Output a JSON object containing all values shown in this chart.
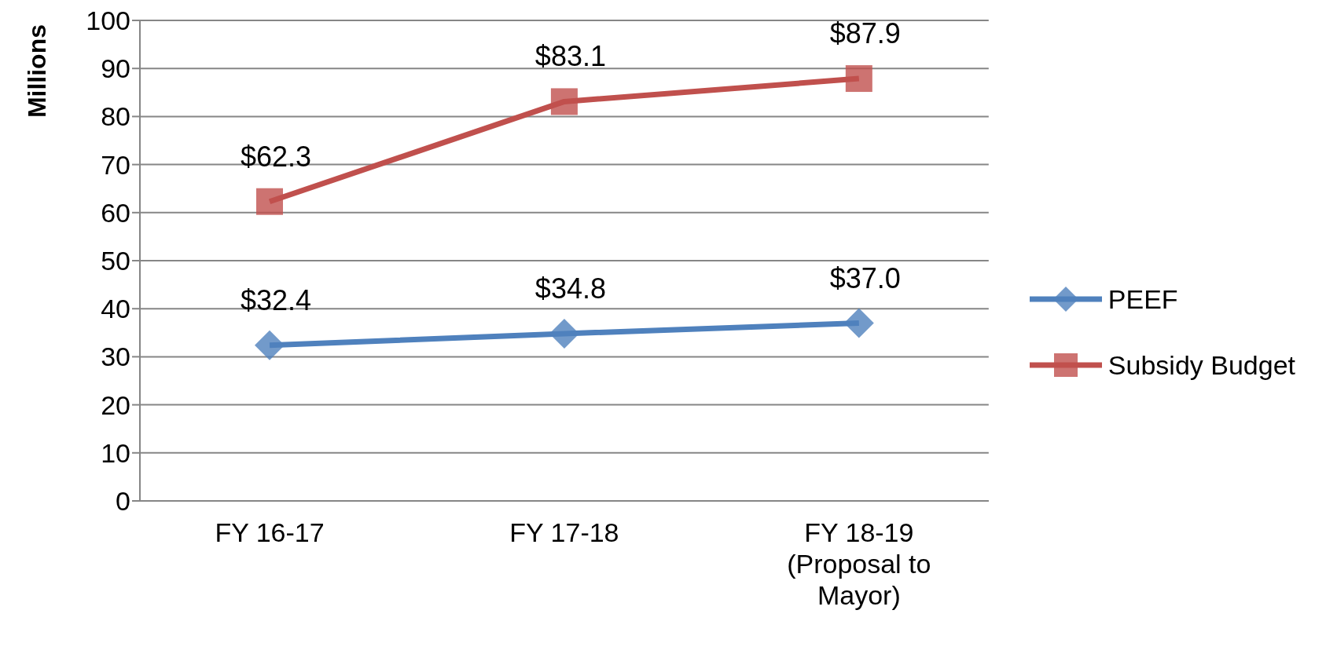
{
  "chart_data": {
    "type": "line",
    "ylabel": "Millions",
    "categories": [
      "FY 16-17",
      "FY 17-18",
      "FY 18-19 (Proposal to Mayor)"
    ],
    "series": [
      {
        "name": "PEEF",
        "color": "#4f81bd",
        "marker": "diamond",
        "values": [
          32.4,
          34.8,
          37.0
        ],
        "value_labels": [
          "$32.4",
          "$34.8",
          "$37.0"
        ]
      },
      {
        "name": "Subsidy Budget",
        "color": "#c0504d",
        "marker": "square",
        "values": [
          62.3,
          83.1,
          87.9
        ],
        "value_labels": [
          "$62.3",
          "$83.1",
          "$87.9"
        ]
      }
    ],
    "ylim": [
      0,
      100
    ],
    "yticks": [
      0,
      10,
      20,
      30,
      40,
      50,
      60,
      70,
      80,
      90,
      100
    ],
    "grid": "y",
    "legend": "right"
  }
}
